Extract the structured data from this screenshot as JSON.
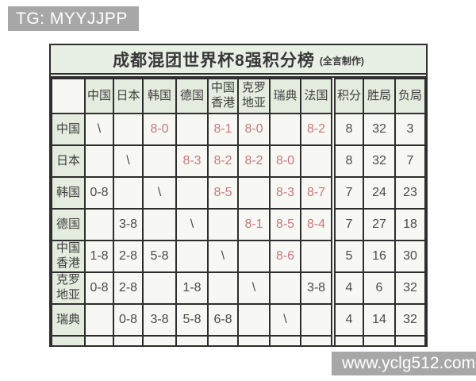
{
  "badge": {
    "text": "TG: MYYJJPP"
  },
  "watermark": {
    "text": "www.yclg512.com"
  },
  "table": {
    "title": "成都混团世界杯8强积分榜",
    "note": "(全言制作)"
  },
  "colors": {
    "header_green": "#e4ecdf",
    "title_green": "#e8efe4",
    "cell_bg": "#f7f7f4",
    "win_red": "#c5797e",
    "border_dark": "#2e2e2e",
    "watermark_gray": "#a7a7a7"
  },
  "chart_data": {
    "type": "table",
    "title": "成都混团世界杯8强积分榜 (全言制作)",
    "columns": [
      "",
      "中国",
      "日本",
      "韩国",
      "德国",
      "中国香港",
      "克罗地亚",
      "瑞典",
      "法国",
      "积分",
      "胜局",
      "负局"
    ],
    "rows": [
      [
        "中国",
        "\\",
        "",
        "8-0",
        "",
        "8-1",
        "8-0",
        "",
        "8-2",
        "8",
        "32",
        "3"
      ],
      [
        "日本",
        "",
        "\\",
        "",
        "8-3",
        "8-2",
        "8-2",
        "8-0",
        "",
        "8",
        "32",
        "7"
      ],
      [
        "韩国",
        "0-8",
        "",
        "\\",
        "",
        "8-5",
        "",
        "8-3",
        "8-7",
        "7",
        "24",
        "23"
      ],
      [
        "德国",
        "",
        "3-8",
        "",
        "\\",
        "",
        "8-1",
        "8-5",
        "8-4",
        "7",
        "27",
        "18"
      ],
      [
        "中国香港",
        "1-8",
        "2-8",
        "5-8",
        "",
        "\\",
        "",
        "8-6",
        "",
        "5",
        "16",
        "30"
      ],
      [
        "克罗地亚",
        "0-8",
        "2-8",
        "",
        "1-8",
        "",
        "\\",
        "",
        "3-8",
        "4",
        "6",
        "32"
      ],
      [
        "瑞典",
        "",
        "0-8",
        "3-8",
        "5-8",
        "6-8",
        "",
        "\\",
        "",
        "4",
        "14",
        "32"
      ]
    ],
    "partial_bottom_row": true,
    "win_marker_rule": "cells beginning with 8- are shown in red (row team won)",
    "layout": "first column and header row tinted light green; double rule separates match grid from 积分/胜局/负局 stat columns"
  }
}
